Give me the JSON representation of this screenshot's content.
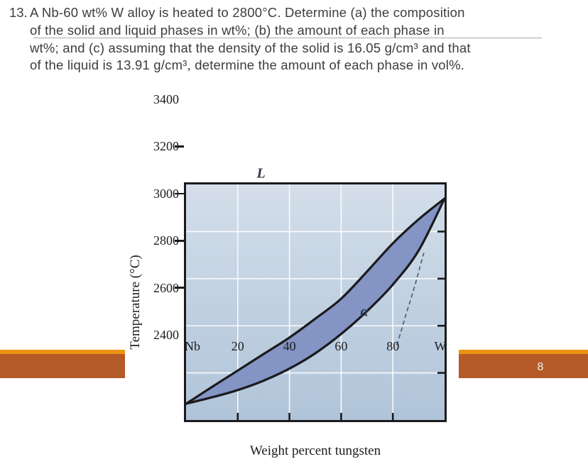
{
  "question": {
    "number": "13.",
    "lines": [
      "A Nb-60 wt% W alloy is heated to 2800°C. Determine (a) the composition",
      "of the solid and liquid phases in wt%; (b) the amount of each phase in",
      "wt%; and (c) assuming that the density of the solid is 16.05 g/cm³ and that",
      "of the liquid is 13.91 g/cm³, determine the amount of each phase in vol%."
    ]
  },
  "chart_data": {
    "type": "line",
    "title": "",
    "xlabel": "Weight percent tungsten",
    "ylabel": "Temperature (°C)",
    "xlim": [
      0,
      100
    ],
    "ylim": [
      2400,
      3400
    ],
    "grid": true,
    "x_ticks": [
      {
        "value": 0,
        "label": "Nb"
      },
      {
        "value": 20,
        "label": "20"
      },
      {
        "value": 40,
        "label": "40"
      },
      {
        "value": 60,
        "label": "60"
      },
      {
        "value": 80,
        "label": "80"
      },
      {
        "value": 100,
        "label": "W"
      }
    ],
    "y_ticks": [
      {
        "value": 2400,
        "label": "2400"
      },
      {
        "value": 2600,
        "label": "2600"
      },
      {
        "value": 2800,
        "label": "2800"
      },
      {
        "value": 3000,
        "label": "3000"
      },
      {
        "value": 3200,
        "label": "3200"
      },
      {
        "value": 3400,
        "label": "3400"
      }
    ],
    "series": [
      {
        "name": "liquidus",
        "style": "solid",
        "points": [
          [
            0,
            2469
          ],
          [
            10,
            2540
          ],
          [
            20,
            2610
          ],
          [
            30,
            2680
          ],
          [
            40,
            2750
          ],
          [
            50,
            2830
          ],
          [
            60,
            2915
          ],
          [
            70,
            3030
          ],
          [
            80,
            3150
          ],
          [
            90,
            3252
          ],
          [
            100,
            3340
          ]
        ]
      },
      {
        "name": "solidus",
        "style": "solid",
        "points": [
          [
            0,
            2469
          ],
          [
            10,
            2496
          ],
          [
            20,
            2527
          ],
          [
            30,
            2567
          ],
          [
            40,
            2618
          ],
          [
            50,
            2683
          ],
          [
            60,
            2765
          ],
          [
            70,
            2862
          ],
          [
            80,
            2975
          ],
          [
            90,
            3120
          ],
          [
            100,
            3340
          ]
        ]
      },
      {
        "name": "metastable-extension",
        "style": "dashed",
        "points": [
          [
            81.5,
            2718
          ],
          [
            83,
            2770
          ],
          [
            85,
            2845
          ],
          [
            87,
            2915
          ],
          [
            89,
            2990
          ],
          [
            90.5,
            3050
          ],
          [
            92,
            3110
          ]
        ]
      }
    ],
    "fill_between": [
      "liquidus",
      "solidus"
    ],
    "region_labels": [
      {
        "text": "L",
        "x": 29,
        "temperature": 3085
      },
      {
        "text": "α",
        "x": 69,
        "temperature": 2496
      }
    ],
    "colors": {
      "two_phase_fill": "#8394c5",
      "curve": "#1b1b1d",
      "dashed_curve": "#51626f",
      "panel_top": "#d4deea",
      "panel_bottom": "#b0c4d9",
      "gridline": "#ffffff"
    }
  },
  "footer": {
    "page_number": "8",
    "bar_orange": "#ec9512",
    "bar_rust": "#b45a28"
  }
}
